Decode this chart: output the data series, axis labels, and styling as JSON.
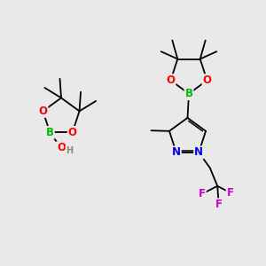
{
  "background_color": "#e9e9e9",
  "figsize": [
    3.0,
    3.0
  ],
  "dpi": 100,
  "atom_colors": {
    "C": "#000000",
    "O": "#ff0000",
    "B": "#00bb00",
    "N": "#0000ee",
    "F": "#cc00cc",
    "H": "#888888"
  },
  "bond_color": "#000000",
  "bond_width": 1.3,
  "font_size_atom": 8.5,
  "font_size_small": 7.0
}
